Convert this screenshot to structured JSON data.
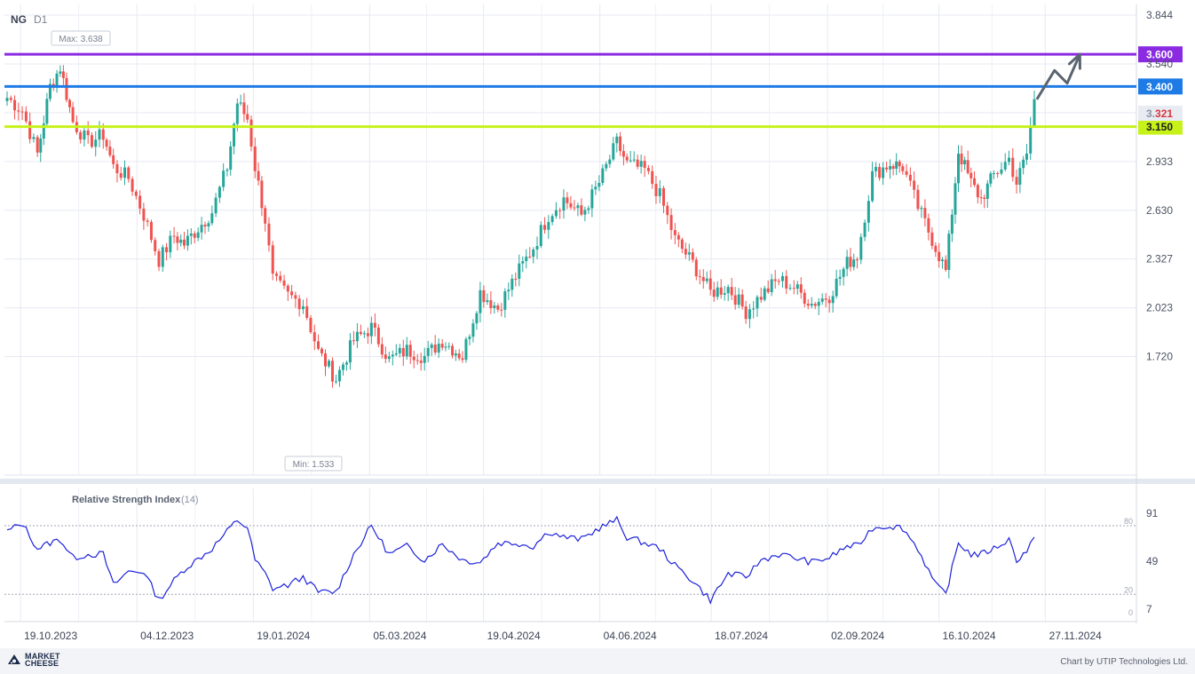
{
  "header": {
    "symbol": "NG",
    "timeframe": "D1"
  },
  "markers": {
    "max_label": "Max: 3.638",
    "min_label": "Min: 1.533"
  },
  "price_axis": {
    "ticks": [
      "3.844",
      "3.540",
      "3.237",
      "2.933",
      "2.630",
      "2.327",
      "2.023",
      "1.720"
    ]
  },
  "level_lines": [
    {
      "label": "3.600",
      "value": 3.6,
      "color": "#8a2be2",
      "text_color": "#ffffff"
    },
    {
      "label": "3.400",
      "value": 3.4,
      "color": "#1e7be6",
      "text_color": "#ffffff"
    },
    {
      "label": "3.150",
      "value": 3.15,
      "color": "#c6f21a",
      "text_color": "#1a1a1a"
    }
  ],
  "current_price": {
    "label_prefix": "3.",
    "label_suffix": "321",
    "value": 3.321
  },
  "x_axis": {
    "labels": [
      "19.10.2023",
      "04.12.2023",
      "19.01.2024",
      "05.03.2024",
      "19.04.2024",
      "04.06.2024",
      "18.07.2024",
      "02.09.2024",
      "16.10.2024",
      "27.11.2024"
    ]
  },
  "rsi": {
    "title": "Relative Strength Index",
    "period": "(14)",
    "axis_ticks": [
      "91",
      "49",
      "7"
    ],
    "level_labels": [
      "80",
      "20",
      "0"
    ]
  },
  "footer": {
    "brand_line1": "MARKET",
    "brand_line2": "CHEESE",
    "credit": "Chart by UTIP Technologies Ltd."
  },
  "colors": {
    "up": "#26a69a",
    "down": "#ef5350",
    "rsi_line": "#1d22d8",
    "grid": "#e6e9f2",
    "arrow": "#5a6470"
  },
  "chart_data": {
    "type": "candlestick",
    "symbol": "NG",
    "timeframe": "D1",
    "x_start": "2023-10-13",
    "x_end": "2024-11-22",
    "y_range": [
      1.533,
      3.844
    ],
    "close_points": [
      {
        "date": "2023-10-13",
        "close": 3.33
      },
      {
        "date": "2023-10-19",
        "close": 3.25
      },
      {
        "date": "2023-10-25",
        "close": 2.98
      },
      {
        "date": "2023-10-30",
        "close": 3.4
      },
      {
        "date": "2023-11-03",
        "close": 3.52
      },
      {
        "date": "2023-11-08",
        "close": 3.18
      },
      {
        "date": "2023-11-14",
        "close": 3.05
      },
      {
        "date": "2023-11-20",
        "close": 3.1
      },
      {
        "date": "2023-11-24",
        "close": 2.9
      },
      {
        "date": "2023-11-30",
        "close": 2.83
      },
      {
        "date": "2023-12-06",
        "close": 2.6
      },
      {
        "date": "2023-12-12",
        "close": 2.32
      },
      {
        "date": "2023-12-18",
        "close": 2.47
      },
      {
        "date": "2023-12-22",
        "close": 2.42
      },
      {
        "date": "2024-01-02",
        "close": 2.62
      },
      {
        "date": "2024-01-08",
        "close": 2.9
      },
      {
        "date": "2024-01-12",
        "close": 3.3
      },
      {
        "date": "2024-01-16",
        "close": 3.2
      },
      {
        "date": "2024-01-19",
        "close": 2.9
      },
      {
        "date": "2024-01-23",
        "close": 2.57
      },
      {
        "date": "2024-01-26",
        "close": 2.2
      },
      {
        "date": "2024-02-01",
        "close": 2.1
      },
      {
        "date": "2024-02-07",
        "close": 2.05
      },
      {
        "date": "2024-02-13",
        "close": 1.75
      },
      {
        "date": "2024-02-20",
        "close": 1.58
      },
      {
        "date": "2024-02-27",
        "close": 1.82
      },
      {
        "date": "2024-03-05",
        "close": 1.9
      },
      {
        "date": "2024-03-12",
        "close": 1.7
      },
      {
        "date": "2024-03-19",
        "close": 1.76
      },
      {
        "date": "2024-03-26",
        "close": 1.72
      },
      {
        "date": "2024-04-02",
        "close": 1.82
      },
      {
        "date": "2024-04-10",
        "close": 1.72
      },
      {
        "date": "2024-04-17",
        "close": 2.12
      },
      {
        "date": "2024-04-24",
        "close": 2.02
      },
      {
        "date": "2024-05-01",
        "close": 2.22
      },
      {
        "date": "2024-05-08",
        "close": 2.4
      },
      {
        "date": "2024-05-14",
        "close": 2.6
      },
      {
        "date": "2024-05-20",
        "close": 2.7
      },
      {
        "date": "2024-05-27",
        "close": 2.6
      },
      {
        "date": "2024-06-03",
        "close": 2.8
      },
      {
        "date": "2024-06-10",
        "close": 3.05
      },
      {
        "date": "2024-06-14",
        "close": 2.92
      },
      {
        "date": "2024-06-21",
        "close": 2.88
      },
      {
        "date": "2024-06-27",
        "close": 2.72
      },
      {
        "date": "2024-07-03",
        "close": 2.45
      },
      {
        "date": "2024-07-10",
        "close": 2.3
      },
      {
        "date": "2024-07-17",
        "close": 2.12
      },
      {
        "date": "2024-07-24",
        "close": 2.15
      },
      {
        "date": "2024-07-31",
        "close": 2.0
      },
      {
        "date": "2024-08-06",
        "close": 2.1
      },
      {
        "date": "2024-08-13",
        "close": 2.2
      },
      {
        "date": "2024-08-19",
        "close": 2.15
      },
      {
        "date": "2024-08-26",
        "close": 2.05
      },
      {
        "date": "2024-09-02",
        "close": 2.1
      },
      {
        "date": "2024-09-09",
        "close": 2.3
      },
      {
        "date": "2024-09-13",
        "close": 2.35
      },
      {
        "date": "2024-09-19",
        "close": 2.85
      },
      {
        "date": "2024-09-26",
        "close": 2.92
      },
      {
        "date": "2024-10-01",
        "close": 2.9
      },
      {
        "date": "2024-10-07",
        "close": 2.65
      },
      {
        "date": "2024-10-14",
        "close": 2.4
      },
      {
        "date": "2024-10-18",
        "close": 2.25
      },
      {
        "date": "2024-10-23",
        "close": 3.0
      },
      {
        "date": "2024-10-28",
        "close": 2.8
      },
      {
        "date": "2024-11-01",
        "close": 2.7
      },
      {
        "date": "2024-11-06",
        "close": 2.85
      },
      {
        "date": "2024-11-12",
        "close": 2.95
      },
      {
        "date": "2024-11-15",
        "close": 2.8
      },
      {
        "date": "2024-11-19",
        "close": 2.98
      },
      {
        "date": "2024-11-22",
        "close": 3.321
      }
    ],
    "projection_arrow": [
      {
        "date": "2024-11-23",
        "value": 3.32
      },
      {
        "date": "2024-11-30",
        "value": 3.5
      },
      {
        "date": "2024-12-05",
        "value": 3.42
      },
      {
        "date": "2024-12-10",
        "value": 3.6
      }
    ],
    "rsi_series": {
      "name": "Relative Strength Index",
      "period": 14,
      "points": [
        {
          "date": "2023-10-13",
          "value": 75
        },
        {
          "date": "2023-10-19",
          "value": 82
        },
        {
          "date": "2023-10-25",
          "value": 60
        },
        {
          "date": "2023-10-30",
          "value": 65
        },
        {
          "date": "2023-11-03",
          "value": 68
        },
        {
          "date": "2023-11-08",
          "value": 52
        },
        {
          "date": "2023-11-14",
          "value": 55
        },
        {
          "date": "2023-11-20",
          "value": 55
        },
        {
          "date": "2023-11-24",
          "value": 28
        },
        {
          "date": "2023-11-30",
          "value": 40
        },
        {
          "date": "2023-12-06",
          "value": 40
        },
        {
          "date": "2023-12-12",
          "value": 15
        },
        {
          "date": "2023-12-18",
          "value": 32
        },
        {
          "date": "2023-12-22",
          "value": 42
        },
        {
          "date": "2024-01-02",
          "value": 60
        },
        {
          "date": "2024-01-08",
          "value": 75
        },
        {
          "date": "2024-01-12",
          "value": 85
        },
        {
          "date": "2024-01-16",
          "value": 78
        },
        {
          "date": "2024-01-19",
          "value": 50
        },
        {
          "date": "2024-01-23",
          "value": 38
        },
        {
          "date": "2024-01-26",
          "value": 25
        },
        {
          "date": "2024-02-01",
          "value": 28
        },
        {
          "date": "2024-02-07",
          "value": 35
        },
        {
          "date": "2024-02-13",
          "value": 22
        },
        {
          "date": "2024-02-20",
          "value": 22
        },
        {
          "date": "2024-02-27",
          "value": 55
        },
        {
          "date": "2024-03-05",
          "value": 80
        },
        {
          "date": "2024-03-12",
          "value": 55
        },
        {
          "date": "2024-03-19",
          "value": 62
        },
        {
          "date": "2024-03-26",
          "value": 50
        },
        {
          "date": "2024-04-02",
          "value": 64
        },
        {
          "date": "2024-04-10",
          "value": 50
        },
        {
          "date": "2024-04-17",
          "value": 48
        },
        {
          "date": "2024-04-24",
          "value": 65
        },
        {
          "date": "2024-05-01",
          "value": 65
        },
        {
          "date": "2024-05-08",
          "value": 62
        },
        {
          "date": "2024-05-14",
          "value": 75
        },
        {
          "date": "2024-05-20",
          "value": 70
        },
        {
          "date": "2024-05-27",
          "value": 68
        },
        {
          "date": "2024-06-03",
          "value": 78
        },
        {
          "date": "2024-06-10",
          "value": 85
        },
        {
          "date": "2024-06-14",
          "value": 70
        },
        {
          "date": "2024-06-21",
          "value": 65
        },
        {
          "date": "2024-06-27",
          "value": 60
        },
        {
          "date": "2024-07-03",
          "value": 45
        },
        {
          "date": "2024-07-10",
          "value": 32
        },
        {
          "date": "2024-07-17",
          "value": 15
        },
        {
          "date": "2024-07-24",
          "value": 38
        },
        {
          "date": "2024-07-31",
          "value": 35
        },
        {
          "date": "2024-08-06",
          "value": 50
        },
        {
          "date": "2024-08-13",
          "value": 55
        },
        {
          "date": "2024-08-19",
          "value": 52
        },
        {
          "date": "2024-08-26",
          "value": 48
        },
        {
          "date": "2024-09-02",
          "value": 52
        },
        {
          "date": "2024-09-09",
          "value": 62
        },
        {
          "date": "2024-09-13",
          "value": 62
        },
        {
          "date": "2024-09-19",
          "value": 78
        },
        {
          "date": "2024-09-26",
          "value": 80
        },
        {
          "date": "2024-10-01",
          "value": 78
        },
        {
          "date": "2024-10-07",
          "value": 60
        },
        {
          "date": "2024-10-14",
          "value": 28
        },
        {
          "date": "2024-10-18",
          "value": 20
        },
        {
          "date": "2024-10-23",
          "value": 65
        },
        {
          "date": "2024-10-28",
          "value": 55
        },
        {
          "date": "2024-11-01",
          "value": 55
        },
        {
          "date": "2024-11-06",
          "value": 60
        },
        {
          "date": "2024-11-12",
          "value": 68
        },
        {
          "date": "2024-11-15",
          "value": 50
        },
        {
          "date": "2024-11-19",
          "value": 58
        },
        {
          "date": "2024-11-22",
          "value": 70
        }
      ]
    }
  }
}
